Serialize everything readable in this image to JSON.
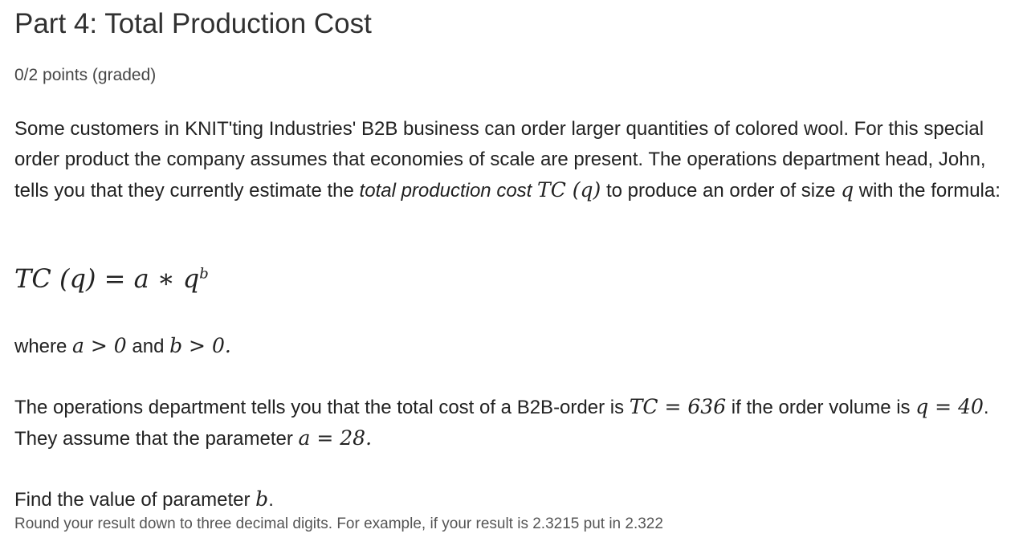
{
  "title": "Part 4: Total Production Cost",
  "points": "0/2 points (graded)",
  "intro": {
    "t1": "Some customers in KNIT'ting Industries' B2B business can order larger quantities of colored wool. For this special order product the company assumes that economies of scale are present. The operations department head, John, tells you that they currently estimate the ",
    "t2": "total production cost",
    "m1": "TC (q)",
    "t3": " to produce an order of size ",
    "m2": "q",
    "t4": " with the formula:"
  },
  "formula": {
    "lhs": "TC (q) = a ∗ q",
    "exp": "b"
  },
  "where": {
    "t1": "where ",
    "m1": "a > 0",
    "t2": " and ",
    "m2": "b > 0."
  },
  "given": {
    "t1": "The operations department tells you that the total cost of a B2B-order is ",
    "m1": "TC = 636",
    "t2": " if the order volume is ",
    "m2": "q = 40",
    "t3": ". They assume that the parameter ",
    "m3": "a = 28.",
    "t4": ""
  },
  "ask": {
    "t1": "Find the value of parameter ",
    "m1": "b",
    "t2": "."
  },
  "hint": "Round your result down to three decimal digits. For example, if your result is 2.3215 put in 2.322"
}
